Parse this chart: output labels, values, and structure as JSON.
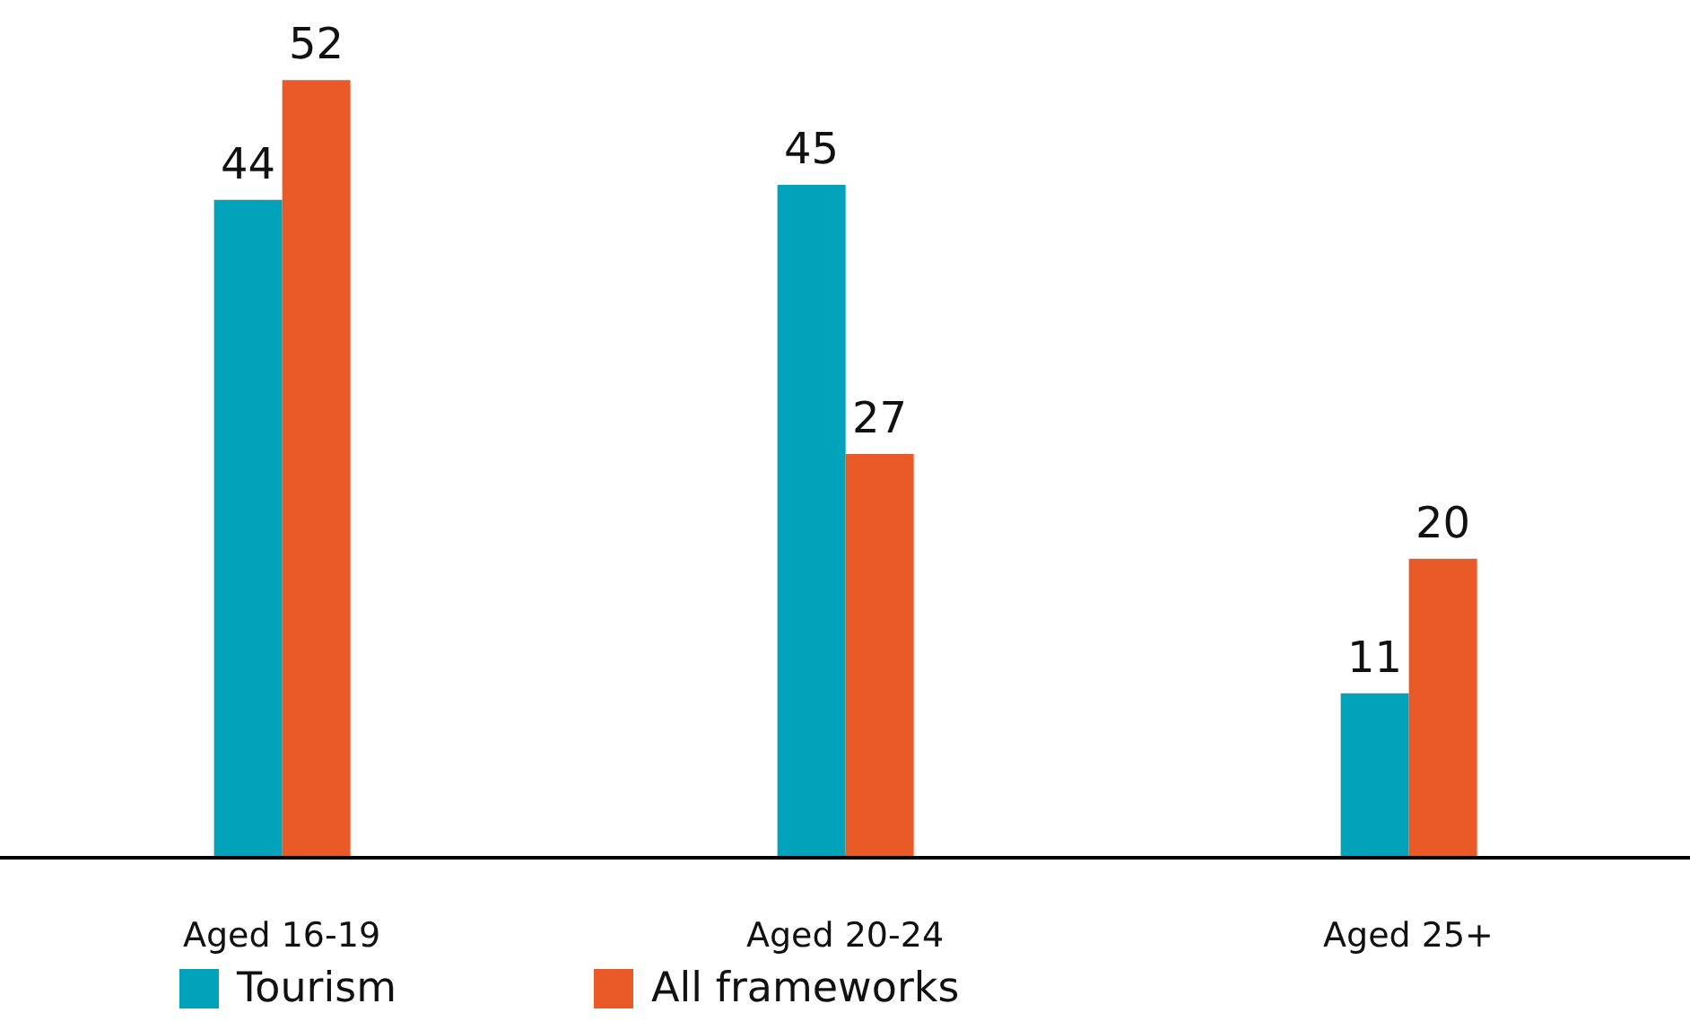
{
  "chart_data": {
    "type": "bar",
    "categories": [
      "Aged 16-19",
      "Aged 20-24",
      "Aged 25+"
    ],
    "series": [
      {
        "name": "Tourism",
        "color": "#00a3b9",
        "values": [
          44,
          45,
          11
        ]
      },
      {
        "name": "All frameworks",
        "color": "#ea5a27",
        "values": [
          52,
          27,
          20
        ]
      }
    ],
    "data_labels": true,
    "legend": "bottom left",
    "grid": false
  }
}
